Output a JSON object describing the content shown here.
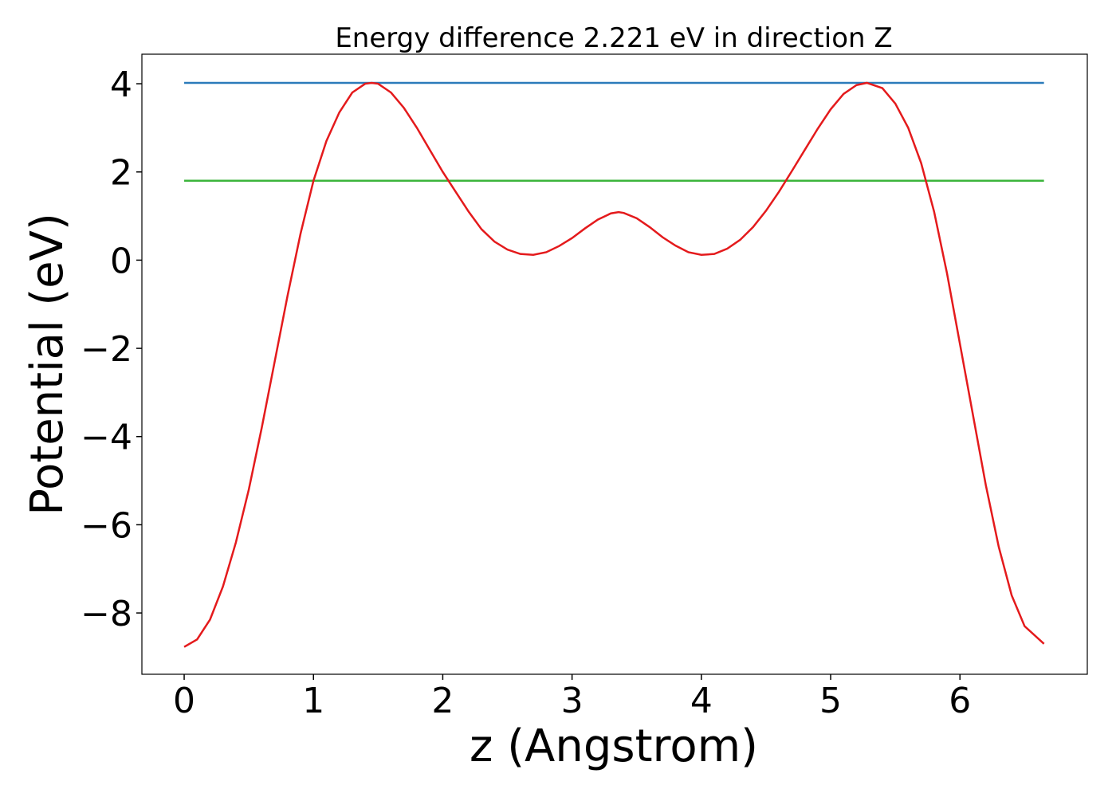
{
  "chart_data": {
    "type": "line",
    "title": "Energy difference 2.221 eV in direction Z",
    "xlabel": "z (Angstrom)",
    "ylabel": "Potential (eV)",
    "xlim": [
      -0.327,
      6.985
    ],
    "ylim": [
      -9.39,
      4.67
    ],
    "xticks": [
      0,
      1,
      2,
      3,
      4,
      5,
      6
    ],
    "yticks": [
      {
        "value": -8,
        "label": "−8"
      },
      {
        "value": -6,
        "label": "−6"
      },
      {
        "value": -4,
        "label": "−4"
      },
      {
        "value": -2,
        "label": "−2"
      },
      0,
      2,
      4
    ],
    "series": [
      {
        "color": "#2b7bba",
        "x": [
          0,
          6.65
        ],
        "values": [
          4.02,
          4.02
        ]
      },
      {
        "color": "#3cb43c",
        "x": [
          0,
          6.65
        ],
        "values": [
          1.8,
          1.8
        ]
      },
      {
        "color": "#e41a1c",
        "x": [
          0,
          0.1,
          0.2,
          0.3,
          0.4,
          0.5,
          0.6,
          0.7,
          0.8,
          0.9,
          1.0,
          1.1,
          1.2,
          1.3,
          1.4,
          1.45,
          1.5,
          1.6,
          1.7,
          1.8,
          1.9,
          2.0,
          2.1,
          2.2,
          2.3,
          2.4,
          2.5,
          2.6,
          2.7,
          2.8,
          2.9,
          3.0,
          3.1,
          3.2,
          3.3,
          3.36,
          3.4,
          3.5,
          3.6,
          3.7,
          3.8,
          3.9,
          4.0,
          4.1,
          4.2,
          4.3,
          4.4,
          4.5,
          4.6,
          4.7,
          4.8,
          4.9,
          5.0,
          5.1,
          5.2,
          5.28,
          5.4,
          5.5,
          5.6,
          5.7,
          5.8,
          5.9,
          6.0,
          6.1,
          6.2,
          6.3,
          6.4,
          6.5,
          6.65
        ],
        "values": [
          -8.77,
          -8.6,
          -8.15,
          -7.4,
          -6.4,
          -5.2,
          -3.8,
          -2.3,
          -0.8,
          0.6,
          1.8,
          2.7,
          3.35,
          3.8,
          4.0,
          4.02,
          4.0,
          3.8,
          3.45,
          3.0,
          2.5,
          2.0,
          1.55,
          1.1,
          0.7,
          0.42,
          0.24,
          0.14,
          0.12,
          0.18,
          0.32,
          0.5,
          0.72,
          0.92,
          1.06,
          1.09,
          1.07,
          0.95,
          0.75,
          0.52,
          0.33,
          0.18,
          0.12,
          0.14,
          0.26,
          0.46,
          0.75,
          1.12,
          1.55,
          2.02,
          2.5,
          2.98,
          3.42,
          3.77,
          3.97,
          4.02,
          3.9,
          3.55,
          3.0,
          2.2,
          1.1,
          -0.3,
          -1.9,
          -3.5,
          -5.1,
          -6.5,
          -7.6,
          -8.3,
          -8.7
        ]
      }
    ]
  }
}
